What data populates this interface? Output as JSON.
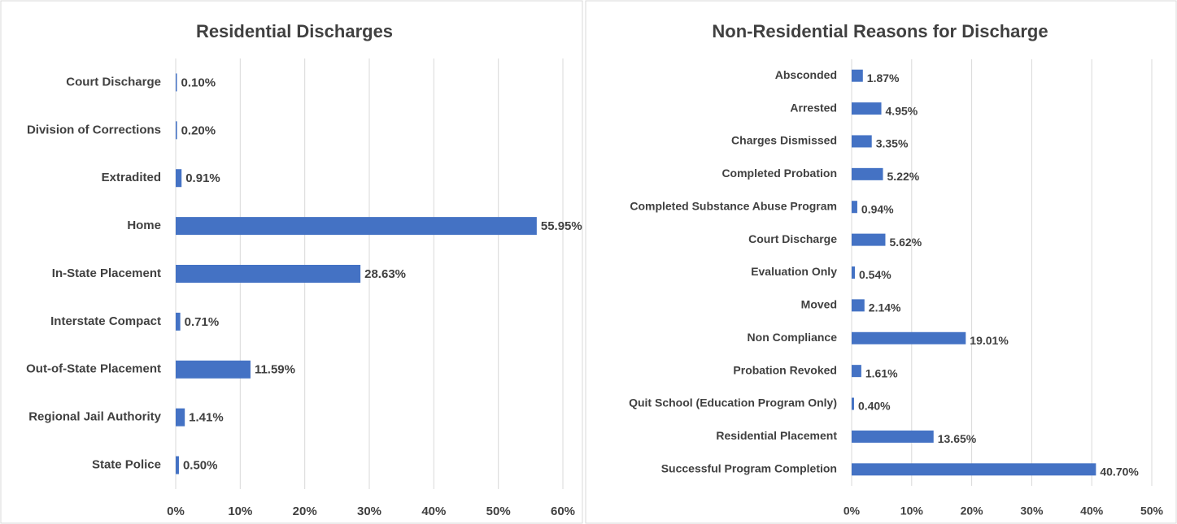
{
  "chart_data": [
    {
      "type": "bar",
      "orientation": "horizontal",
      "title": "Residential Discharges",
      "color": "#4472c4",
      "grid": true,
      "categories": [
        "Court Discharge",
        "Division of Corrections",
        "Extradited",
        "Home",
        "In-State Placement",
        "Interstate Compact",
        "Out-of-State Placement",
        "Regional Jail Authority",
        "State Police"
      ],
      "values": [
        0.1,
        0.2,
        0.91,
        55.95,
        28.63,
        0.71,
        11.59,
        1.41,
        0.5
      ],
      "value_labels": [
        "0.10%",
        "0.20%",
        "0.91%",
        "55.95%",
        "28.63%",
        "0.71%",
        "11.59%",
        "1.41%",
        "0.50%"
      ],
      "xlim": [
        0,
        60
      ],
      "xticks": [
        {
          "value": 0,
          "label": "0%"
        },
        {
          "value": 10,
          "label": "10%"
        },
        {
          "value": 20,
          "label": "20%"
        },
        {
          "value": 30,
          "label": "30%"
        },
        {
          "value": 40,
          "label": "40%"
        },
        {
          "value": 50,
          "label": "50%"
        },
        {
          "value": 60,
          "label": "60%"
        }
      ]
    },
    {
      "type": "bar",
      "orientation": "horizontal",
      "title": "Non-Residential Reasons for Discharge",
      "color": "#4472c4",
      "grid": true,
      "categories": [
        "Absconded",
        "Arrested",
        "Charges Dismissed",
        "Completed Probation",
        "Completed Substance Abuse Program",
        "Court Discharge",
        "Evaluation Only",
        "Moved",
        "Non Compliance",
        "Probation Revoked",
        "Quit School (Education Program Only)",
        "Residential Placement",
        "Successful Program Completion"
      ],
      "values": [
        1.87,
        4.95,
        3.35,
        5.22,
        0.94,
        5.62,
        0.54,
        2.14,
        19.01,
        1.61,
        0.4,
        13.65,
        40.7
      ],
      "value_labels": [
        "1.87%",
        "4.95%",
        "3.35%",
        "5.22%",
        "0.94%",
        "5.62%",
        "0.54%",
        "2.14%",
        "19.01%",
        "1.61%",
        "0.40%",
        "13.65%",
        "40.70%"
      ],
      "xlim": [
        0,
        50
      ],
      "xticks": [
        {
          "value": 0,
          "label": "0%"
        },
        {
          "value": 10,
          "label": "10%"
        },
        {
          "value": 20,
          "label": "20%"
        },
        {
          "value": 30,
          "label": "30%"
        },
        {
          "value": 40,
          "label": "40%"
        },
        {
          "value": 50,
          "label": "50%"
        }
      ]
    }
  ]
}
